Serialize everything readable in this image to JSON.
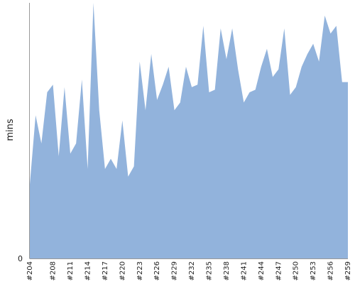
{
  "chart_data": {
    "type": "area",
    "ylabel": "mins",
    "xlabel": "",
    "title": "",
    "y_tick_labels": [
      "0"
    ],
    "ylim": [
      0,
      100
    ],
    "x_tick_labels": [
      "#204",
      "#208",
      "#211",
      "#214",
      "#217",
      "#220",
      "#223",
      "#226",
      "#229",
      "#232",
      "#235",
      "#238",
      "#241",
      "#244",
      "#247",
      "#250",
      "#253",
      "#256",
      "#259"
    ],
    "color": "#92b3dc",
    "grid": false,
    "series": [
      {
        "x": [
          204,
          205,
          206,
          207,
          208,
          209,
          210,
          211,
          212,
          213,
          214,
          215,
          216,
          217,
          218,
          219,
          220,
          221,
          222,
          223,
          224,
          225,
          226,
          227,
          228,
          229,
          230,
          231,
          232,
          233,
          234,
          235,
          236,
          237,
          238,
          239,
          240,
          241,
          242,
          243,
          244,
          245,
          246,
          247,
          248,
          249,
          250,
          251,
          252,
          253,
          254,
          255,
          256,
          257,
          258,
          259
        ],
        "values": [
          29,
          56,
          45,
          65,
          68,
          40,
          67,
          41,
          45,
          70,
          35,
          100,
          58,
          35,
          39,
          35,
          54,
          32,
          36,
          77,
          58,
          80,
          62,
          68,
          75,
          58,
          61,
          75,
          67,
          68,
          91,
          65,
          66,
          90,
          78,
          90,
          74,
          61,
          65,
          66,
          75,
          82,
          71,
          74,
          90,
          64,
          67,
          75,
          80,
          84,
          77,
          95,
          88,
          91,
          69,
          69
        ]
      }
    ]
  }
}
